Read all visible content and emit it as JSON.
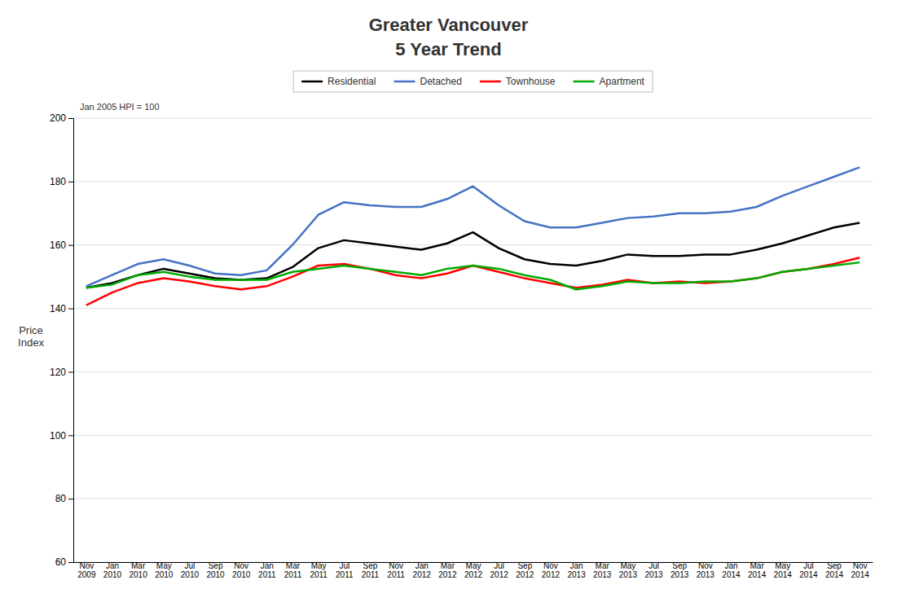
{
  "chart_data": {
    "type": "line",
    "title": "Greater Vancouver",
    "subtitle": "5 Year Trend",
    "y_label": "Price\nIndex",
    "annotations": [
      "Jan 2005 HPI = 100"
    ],
    "categories": [
      "Nov\n2009",
      "Jan\n2010",
      "Mar\n2010",
      "May\n2010",
      "Jul\n2010",
      "Sep\n2010",
      "Nov\n2010",
      "Jan\n2011",
      "Mar\n2011",
      "May\n2011",
      "Jul\n2011",
      "Sep\n2011",
      "Nov\n2011",
      "Jan\n2012",
      "Mar\n2012",
      "May\n2012",
      "Jul\n2012",
      "Sep\n2012",
      "Nov\n2012",
      "Jan\n2013",
      "Mar\n2013",
      "May\n2013",
      "Jul\n2013",
      "Sep\n2013",
      "Nov\n2013",
      "Jan\n2014",
      "Mar\n2014",
      "May\n2014",
      "Jul\n2014",
      "Sep\n2014",
      "Nov\n2014"
    ],
    "series": [
      {
        "name": "Residential",
        "color": "#000000",
        "values": [
          146.5,
          148.0,
          150.5,
          152.5,
          151.0,
          149.5,
          149.0,
          149.5,
          153.0,
          159.0,
          161.5,
          160.5,
          159.5,
          158.5,
          160.5,
          164.0,
          159.0,
          155.5,
          154.0,
          153.5,
          155.0,
          157.0,
          156.5,
          156.5,
          157.0,
          157.0,
          158.5,
          160.5,
          163.0,
          165.5,
          167.0
        ]
      },
      {
        "name": "Detached",
        "color": "#4472c4",
        "values": [
          147.0,
          150.5,
          154.0,
          155.5,
          153.5,
          151.0,
          150.5,
          152.0,
          160.0,
          169.5,
          173.5,
          172.5,
          172.0,
          172.0,
          174.5,
          178.5,
          172.5,
          167.5,
          165.5,
          165.5,
          167.0,
          168.5,
          169.0,
          170.0,
          170.0,
          170.5,
          172.0,
          175.5,
          178.5,
          181.5,
          184.5
        ]
      },
      {
        "name": "Townhouse",
        "color": "#ff0000",
        "values": [
          141.0,
          145.0,
          148.0,
          149.5,
          148.5,
          147.0,
          146.0,
          147.0,
          150.0,
          153.5,
          154.0,
          152.5,
          150.5,
          149.5,
          151.0,
          153.5,
          151.5,
          149.5,
          148.0,
          146.5,
          147.5,
          149.0,
          148.0,
          148.5,
          148.0,
          148.5,
          149.5,
          151.5,
          152.5,
          154.0,
          156.0
        ]
      },
      {
        "name": "Apartment",
        "color": "#00aa00",
        "values": [
          146.5,
          147.5,
          150.5,
          151.5,
          150.0,
          149.0,
          149.0,
          149.0,
          151.5,
          152.5,
          153.5,
          152.5,
          151.5,
          150.5,
          152.5,
          153.5,
          152.5,
          150.5,
          149.0,
          146.0,
          147.0,
          148.5,
          148.0,
          148.0,
          148.5,
          148.5,
          149.5,
          151.5,
          152.5,
          153.5,
          154.5
        ]
      }
    ],
    "ylim": [
      60,
      200
    ],
    "yticks": [
      60,
      80,
      100,
      120,
      140,
      160,
      180,
      200
    ],
    "grid": true,
    "legend": "top"
  }
}
